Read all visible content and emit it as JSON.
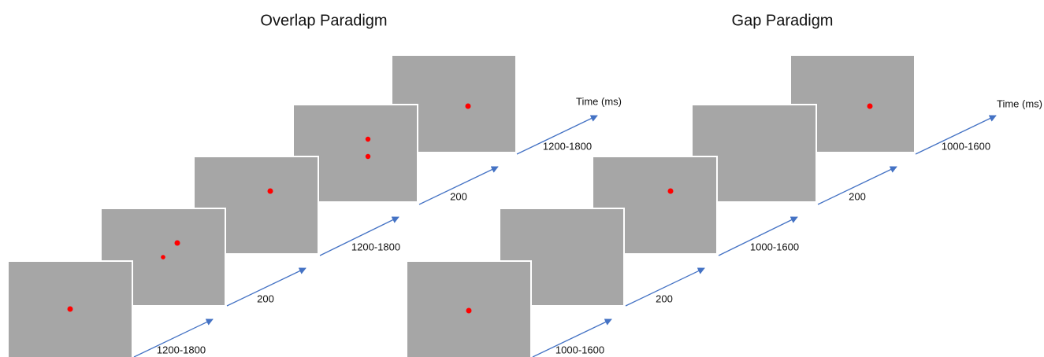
{
  "panels": [
    {
      "title": "Overlap Paradigm",
      "axis_label": "Time (ms)",
      "durations": [
        "1200-1800",
        "200",
        "1200-1800",
        "200",
        "1200-1800"
      ]
    },
    {
      "title": "Gap Paradigm",
      "axis_label": "Time (ms)",
      "durations": [
        "1000-1600",
        "200",
        "1000-1600",
        "200",
        "1000-1600"
      ]
    }
  ]
}
